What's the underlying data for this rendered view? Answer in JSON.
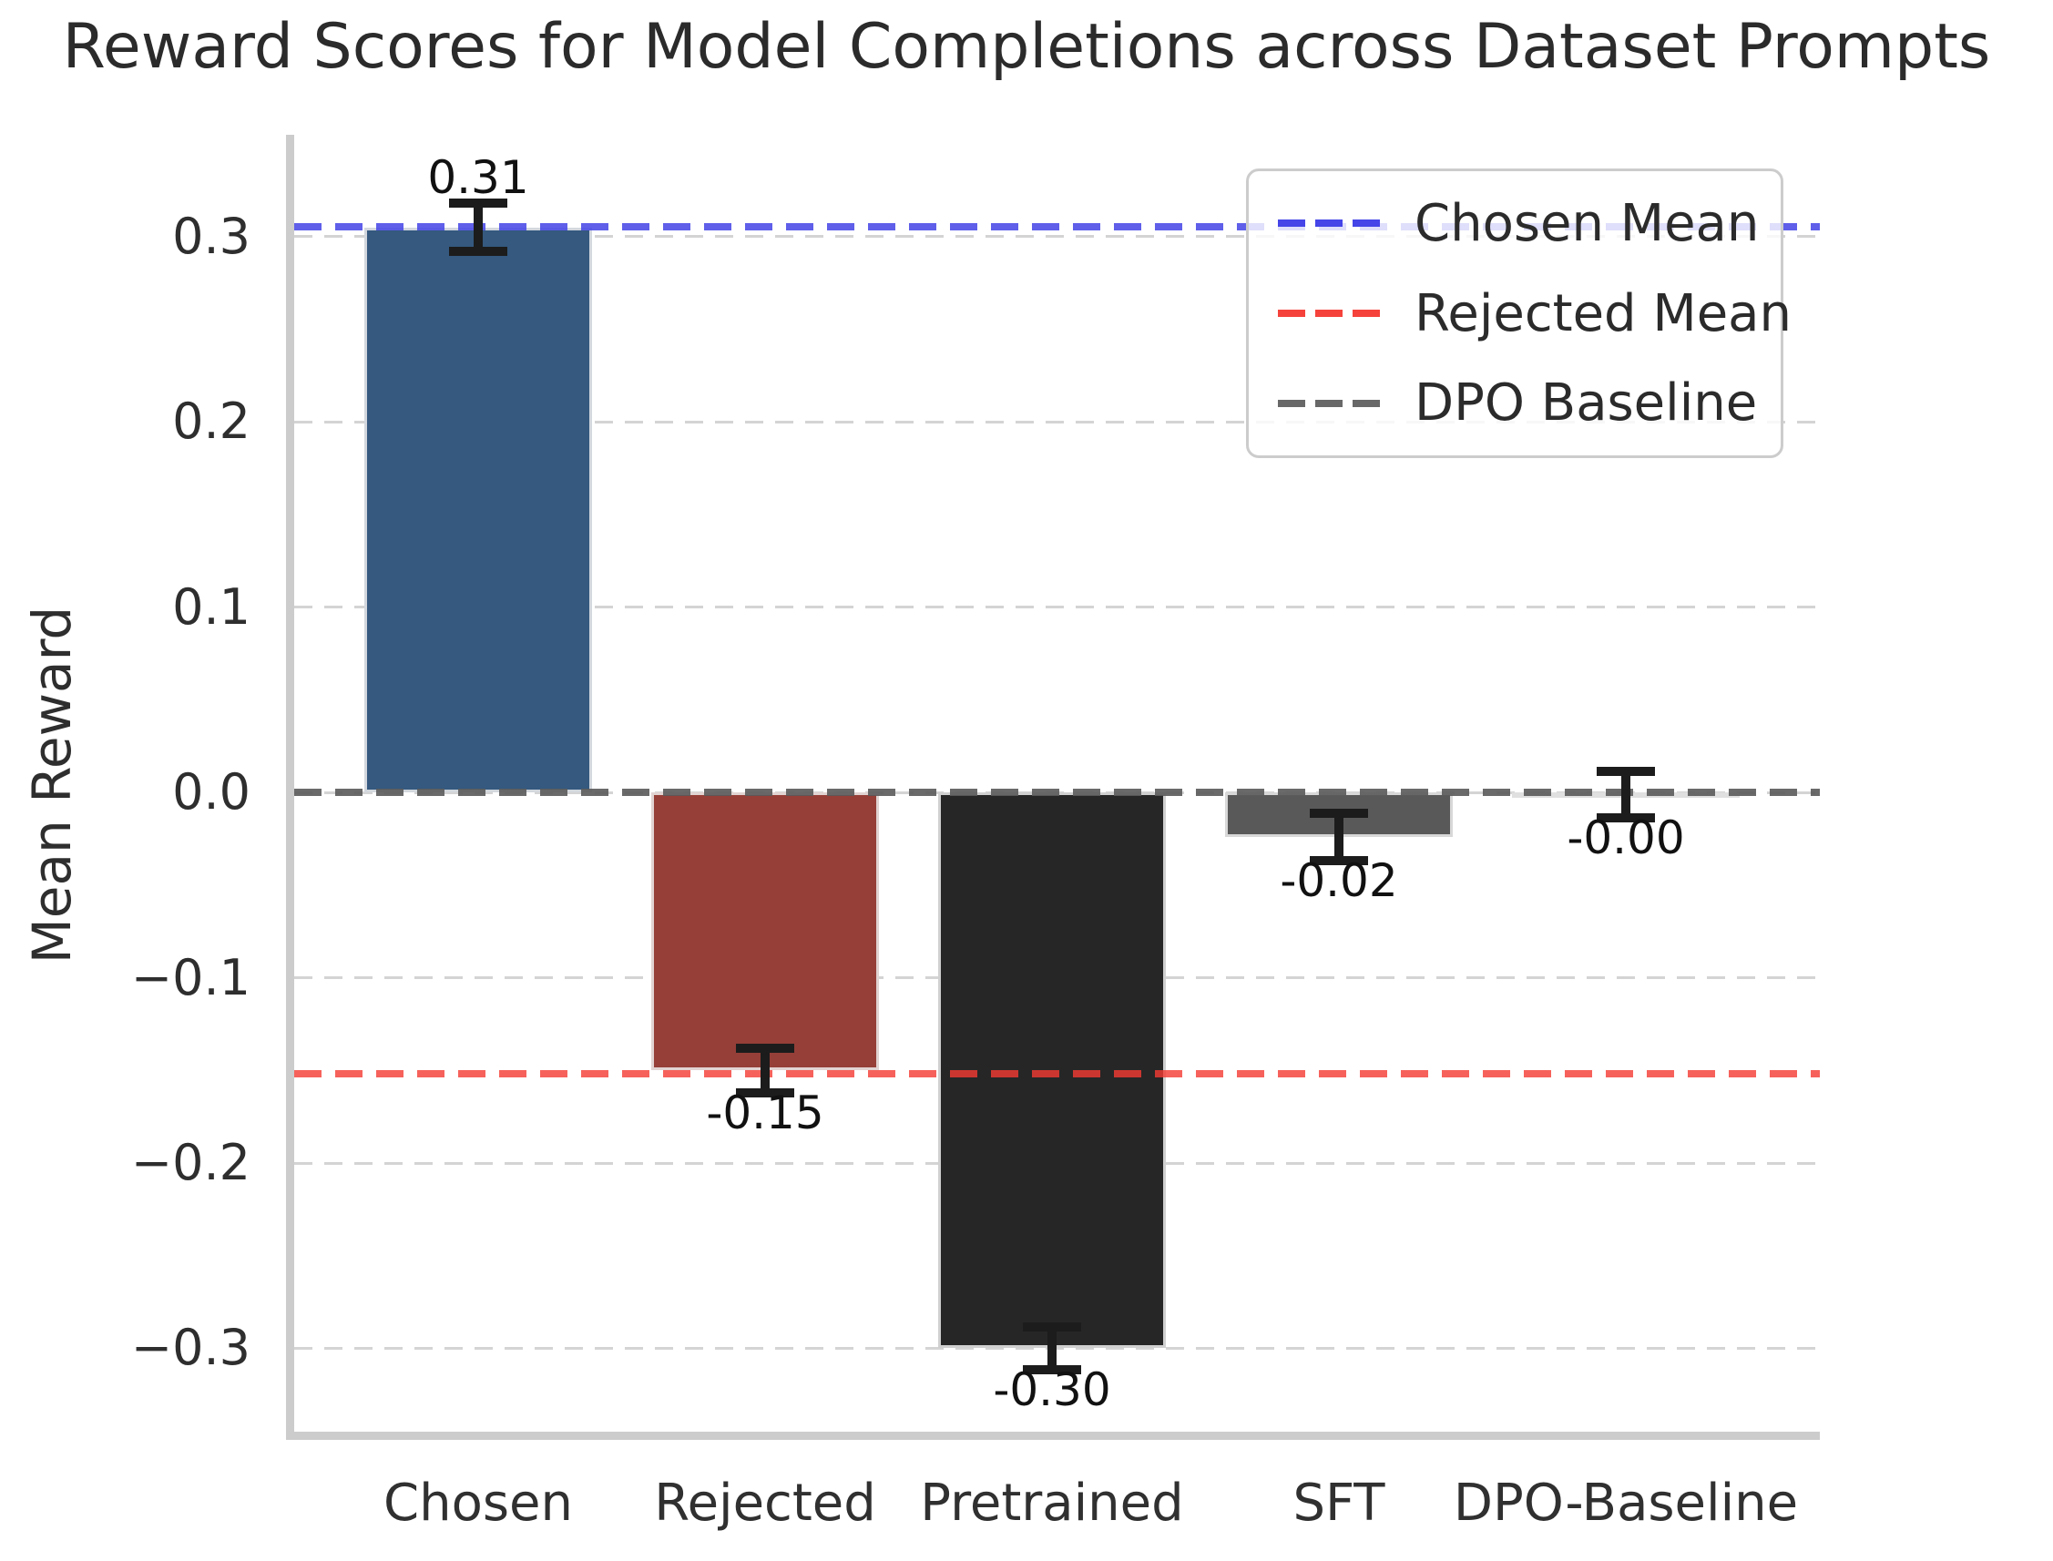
{
  "title": "Reward Scores for Model Completions across Dataset Prompts",
  "ylabel": "Mean Reward",
  "chart_data": {
    "type": "bar",
    "categories": [
      "Chosen",
      "Rejected",
      "Pretrained",
      "SFT",
      "DPO-Baseline"
    ],
    "values": [
      0.31,
      -0.15,
      -0.3,
      -0.02,
      -0.0
    ],
    "values_precise": [
      0.305,
      -0.15,
      -0.3,
      -0.024,
      -0.001
    ],
    "errors": [
      0.013,
      0.012,
      0.0115,
      0.013,
      0.0125
    ],
    "bar_value_labels": [
      "0.31",
      "-0.15",
      "-0.30",
      "-0.02",
      "-0.00"
    ],
    "bar_colors": [
      "#35597f",
      "#953f38",
      "#262626",
      "#595959",
      "#8b8b8b"
    ],
    "xlabel": "",
    "ylabel": "Mean Reward",
    "ylim": [
      -0.345,
      0.355
    ],
    "yticks": [
      0.3,
      0.2,
      0.1,
      0.0,
      -0.1,
      -0.2,
      -0.3
    ],
    "ytick_labels": [
      "0.3",
      "0.2",
      "0.1",
      "0.0",
      "−0.1",
      "−0.2",
      "−0.3"
    ],
    "grid": "horizontal-dashed",
    "error_bar_color": "#1c1c1c",
    "ref_lines": [
      {
        "label": "Chosen Mean",
        "value": 0.3055,
        "color": "#4343e6",
        "opacity": 0.85
      },
      {
        "label": "Rejected Mean",
        "value": -0.152,
        "color": "#f43b32",
        "opacity": 0.8
      },
      {
        "label": "DPO Baseline",
        "value": 0.0,
        "color": "#5a5a5a",
        "opacity": 0.9
      }
    ],
    "legend": {
      "position": "upper right",
      "entries": [
        {
          "label": "Chosen Mean",
          "color": "#4545e8"
        },
        {
          "label": "Rejected Mean",
          "color": "#f5433b"
        },
        {
          "label": "DPO Baseline",
          "color": "#686868"
        }
      ]
    }
  }
}
